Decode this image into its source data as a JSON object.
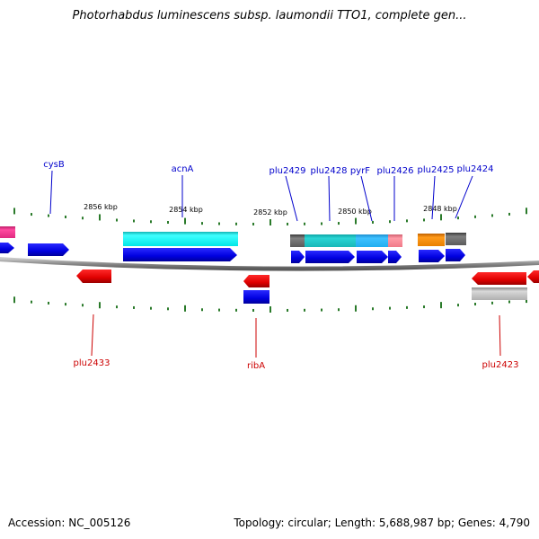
{
  "header": {
    "title": "Photorhabdus luminescens subsp. laumondii TTO1, complete gen..."
  },
  "footer": {
    "accession": "Accession: NC_005126",
    "summary": "Topology: circular; Length: 5,688,987 bp; Genes: 4,790"
  },
  "scale_labels": [
    "2856 kbp",
    "2854 kbp",
    "2852 kbp",
    "2850 kbp",
    "2848 kbp"
  ],
  "gene_labels_top": [
    "cysB",
    "acnA",
    "plu2429",
    "plu2428",
    "pyrF",
    "plu2426",
    "plu2425",
    "plu2424"
  ],
  "gene_labels_bottom": [
    "plu2433",
    "ribA",
    "plu2423"
  ],
  "colors": {
    "top_label": "#0000cc",
    "bottom_label": "#cc0000",
    "forward_gene": "#0000e6",
    "reverse_gene": "#e60000",
    "tick": "#2a7a2a",
    "backbone": "#808080"
  }
}
